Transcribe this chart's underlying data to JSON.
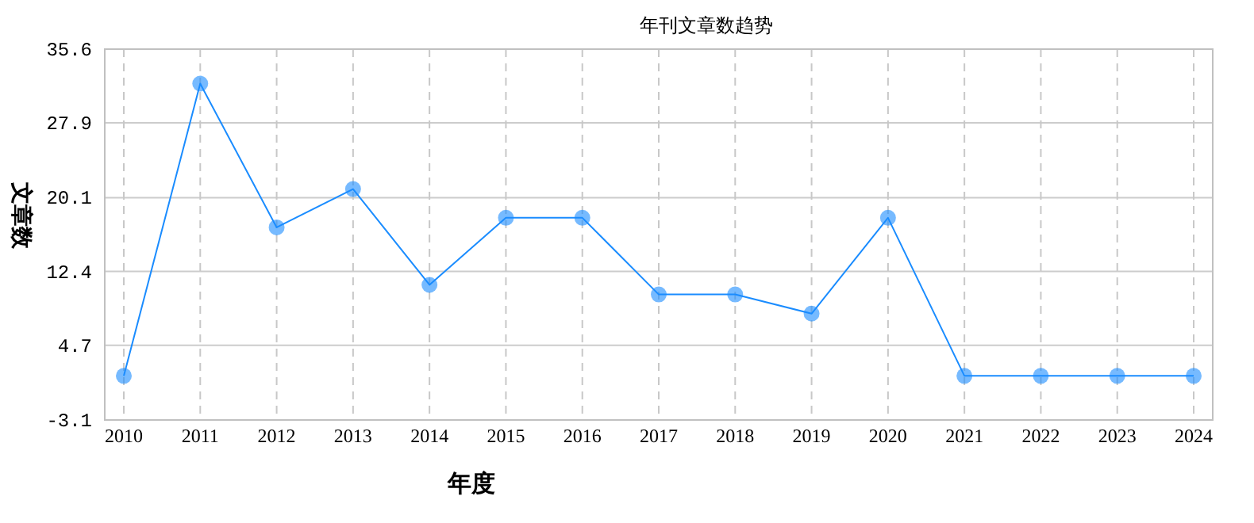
{
  "chart_data": {
    "type": "line",
    "title": "年刊文章数趋势",
    "xlabel": "年度",
    "ylabel": "文章数",
    "categories": [
      "2010",
      "2011",
      "2012",
      "2013",
      "2014",
      "2015",
      "2016",
      "2017",
      "2018",
      "2019",
      "2020",
      "2021",
      "2022",
      "2023",
      "2024"
    ],
    "series": [
      {
        "color": "#1a8cff",
        "values": [
          1.5,
          32,
          17,
          21,
          11,
          18,
          18,
          10,
          10,
          8,
          18,
          1.5,
          1.5,
          1.5,
          1.5
        ]
      }
    ],
    "ylim": [
      -3.1,
      35.6
    ],
    "yticks": [
      -3.1,
      4.7,
      12.4,
      20.1,
      27.9,
      35.6
    ],
    "grid": true,
    "marker": "circle",
    "line_style": "solid"
  }
}
